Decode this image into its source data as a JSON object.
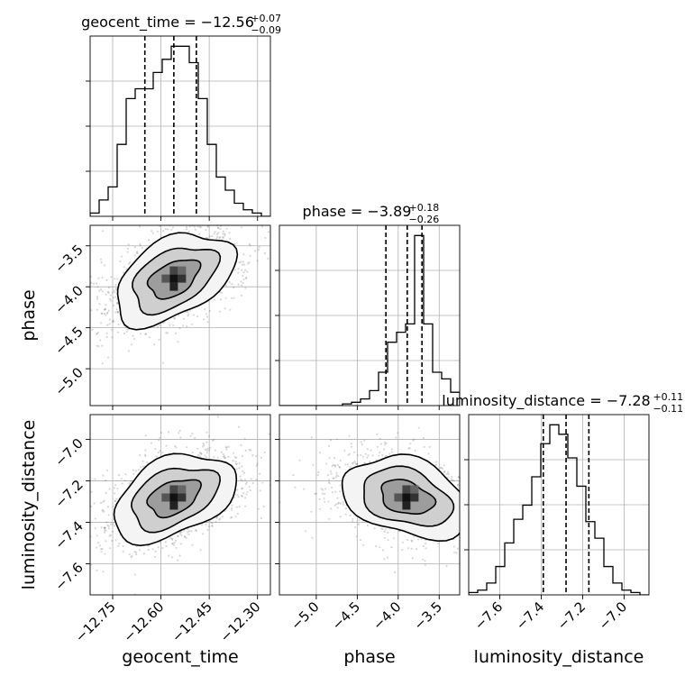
{
  "chart_data": {
    "type": "corner",
    "parameters": [
      {
        "name": "geocent_time",
        "label": "geocent_time",
        "median": -12.56,
        "minus": 0.09,
        "plus": 0.07,
        "title_main": "geocent_time = −12.56",
        "title_sup": "+0.07",
        "title_sub": "−0.09",
        "range": [
          -12.82,
          -12.26
        ],
        "ticks": [
          -12.75,
          -12.6,
          -12.45,
          -12.3
        ],
        "tick_labels": [
          "−12.75",
          "−12.60",
          "−12.45",
          "−12.30"
        ],
        "quantiles": [
          -12.65,
          -12.56,
          -12.49
        ],
        "hist": [
          1,
          5,
          9,
          22,
          36,
          39,
          39,
          44,
          48,
          52,
          52,
          47,
          36,
          22,
          12,
          8,
          4,
          2,
          1,
          0
        ]
      },
      {
        "name": "phase",
        "label": "phase",
        "median": -3.89,
        "minus": 0.26,
        "plus": 0.18,
        "title_main": "phase = −3.89",
        "title_sup": "+0.18",
        "title_sub": "−0.26",
        "range": [
          -5.45,
          -3.25
        ],
        "ticks": [
          -5.0,
          -4.5,
          -4.0,
          -3.5
        ],
        "tick_labels": [
          "−5.0",
          "−4.5",
          "−4.0",
          "−3.5"
        ],
        "quantiles": [
          -4.15,
          -3.89,
          -3.71
        ],
        "hist": [
          0,
          0,
          0,
          0,
          0,
          0,
          0,
          1,
          2,
          4,
          9,
          20,
          38,
          44,
          49,
          102,
          49,
          20,
          16,
          8
        ]
      },
      {
        "name": "luminosity_distance",
        "label": "luminosity_distance",
        "median": -7.28,
        "minus": 0.11,
        "plus": 0.11,
        "title_main": "luminosity_distance = −7.28",
        "title_sup": "+0.11",
        "title_sub": "−0.11",
        "range": [
          -7.75,
          -6.88
        ],
        "ticks": [
          -7.6,
          -7.4,
          -7.2,
          -7.0
        ],
        "tick_labels": [
          "−7.6",
          "−7.4",
          "−7.2",
          "−7.0"
        ],
        "quantiles": [
          -7.39,
          -7.28,
          -7.17
        ],
        "hist": [
          1,
          2,
          5,
          12,
          22,
          32,
          38,
          50,
          64,
          72,
          68,
          58,
          46,
          31,
          24,
          12,
          5,
          2,
          1,
          0
        ]
      }
    ],
    "correlations": [
      {
        "row": 1,
        "col": 0,
        "center_x": -12.56,
        "center_y": -3.9,
        "rho": 0.6
      },
      {
        "row": 2,
        "col": 0,
        "center_x": -12.56,
        "center_y": -7.28,
        "rho": 0.5
      },
      {
        "row": 2,
        "col": 1,
        "center_x": -3.9,
        "center_y": -7.28,
        "rho": -0.35
      }
    ],
    "grid": true
  }
}
